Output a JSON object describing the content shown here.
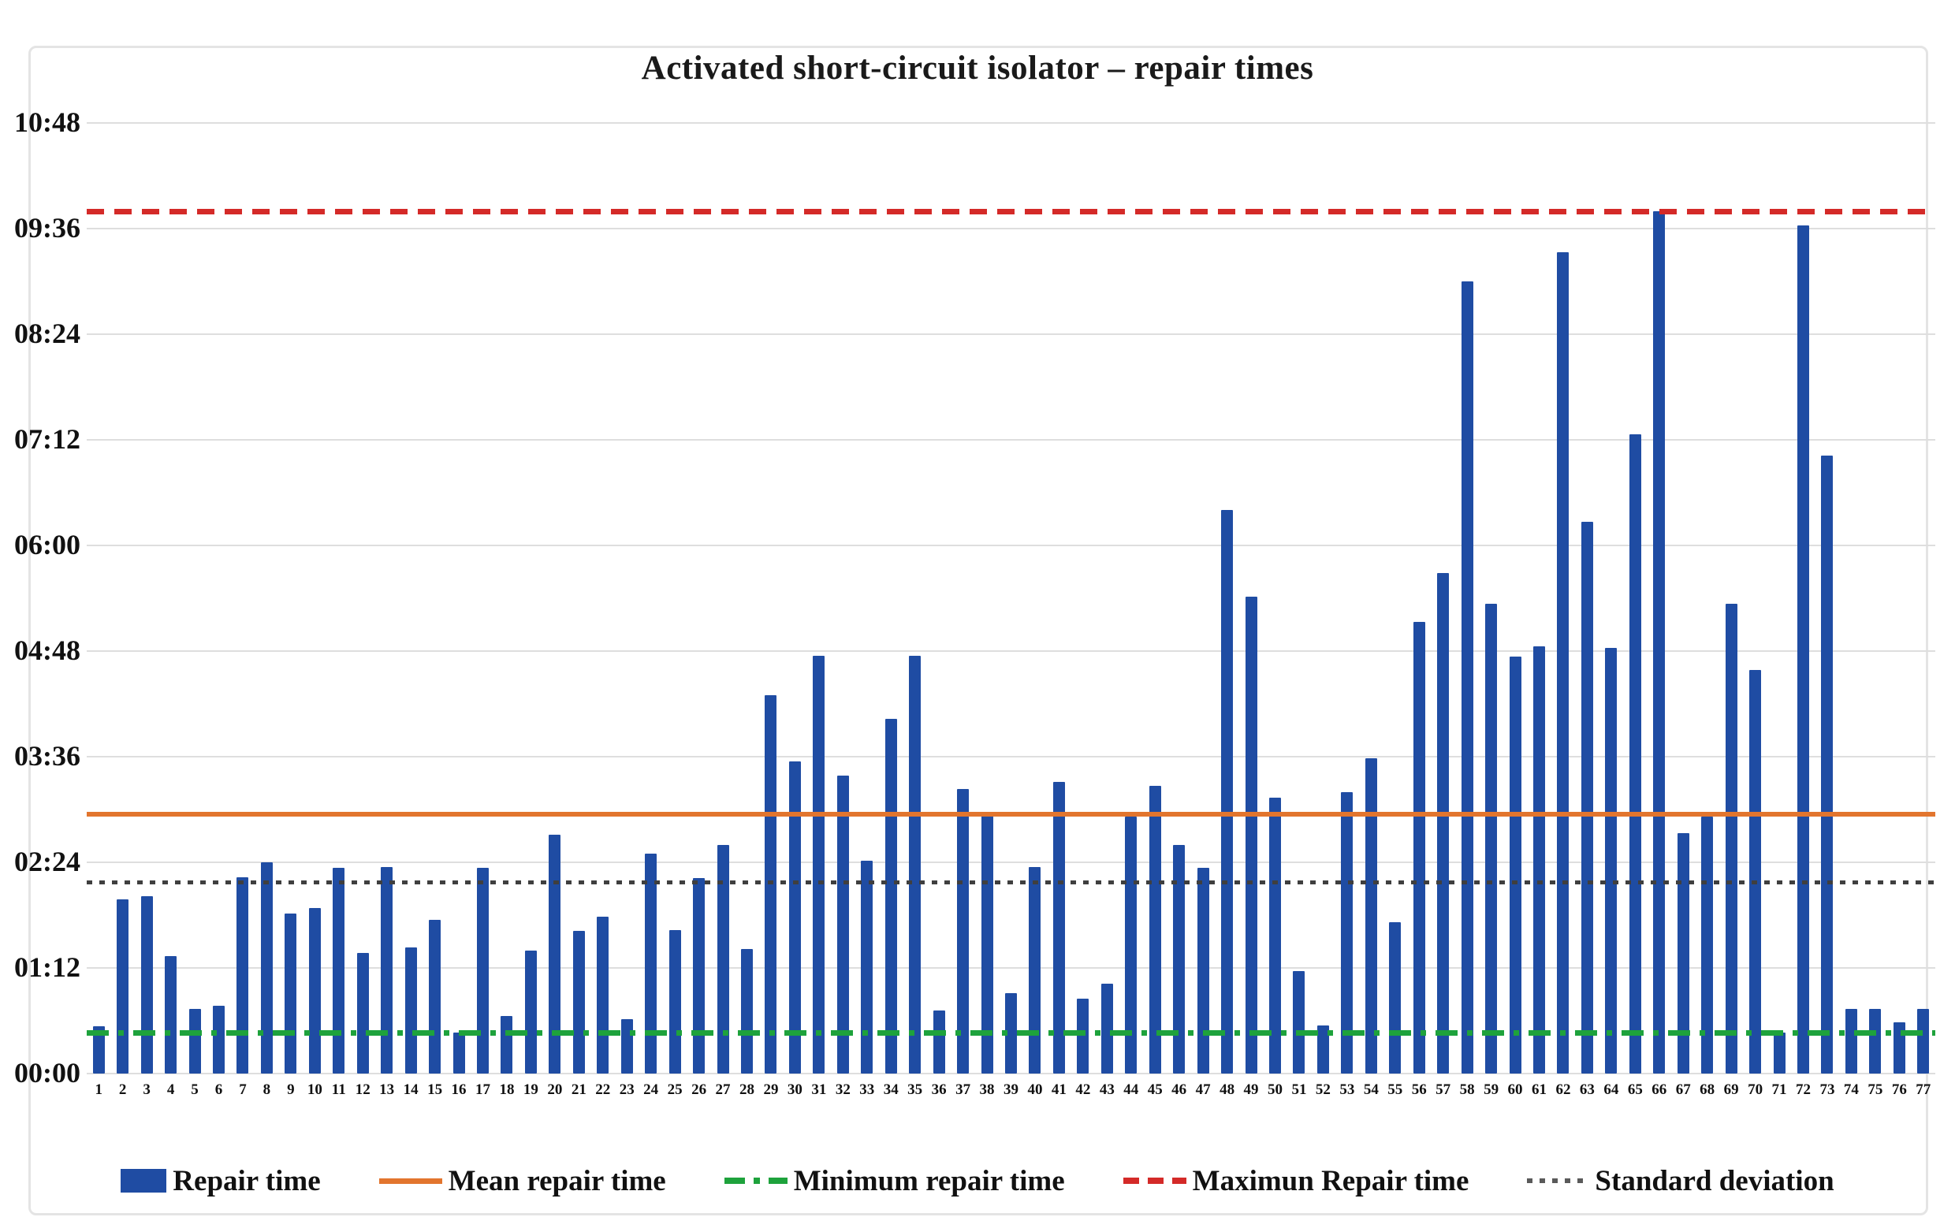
{
  "title": "Activated short-circuit isolator – repair times",
  "chart_data": {
    "type": "bar",
    "title": "Activated short-circuit isolator – repair times",
    "xlabel": "",
    "ylabel": "",
    "grid": "horizontal",
    "legend_position": "bottom",
    "bar_color": "#1f4ca3",
    "y_ticks": [
      "00:00",
      "01:12",
      "02:24",
      "03:36",
      "04:48",
      "06:00",
      "07:12",
      "08:24",
      "09:36",
      "10:48"
    ],
    "ylim_hhmm": [
      "00:00",
      "10:48"
    ],
    "categories": [
      1,
      2,
      3,
      4,
      5,
      6,
      7,
      8,
      9,
      10,
      11,
      12,
      13,
      14,
      15,
      16,
      17,
      18,
      19,
      20,
      21,
      22,
      23,
      24,
      25,
      26,
      27,
      28,
      29,
      30,
      31,
      32,
      33,
      34,
      35,
      36,
      37,
      38,
      39,
      40,
      41,
      42,
      43,
      44,
      45,
      46,
      47,
      48,
      49,
      50,
      51,
      52,
      53,
      54,
      55,
      56,
      57,
      58,
      59,
      60,
      61,
      62,
      63,
      64,
      65,
      66,
      67,
      68,
      69,
      70,
      71,
      72,
      73,
      74,
      75,
      76,
      77
    ],
    "values_hhmm": [
      "0:32",
      "1:59",
      "2:01",
      "1:20",
      "0:44",
      "0:46",
      "2:14",
      "2:24",
      "1:49",
      "1:53",
      "2:20",
      "1:22",
      "2:21",
      "1:26",
      "1:45",
      "0:28",
      "2:20",
      "0:39",
      "1:24",
      "2:43",
      "1:37",
      "1:47",
      "0:37",
      "2:30",
      "1:38",
      "2:13",
      "2:36",
      "1:25",
      "4:18",
      "3:33",
      "4:45",
      "3:23",
      "2:25",
      "4:02",
      "4:45",
      "0:43",
      "3:14",
      "2:57",
      "0:55",
      "2:21",
      "3:19",
      "0:51",
      "1:01",
      "2:55",
      "3:16",
      "2:36",
      "2:20",
      "6:24",
      "5:25",
      "3:08",
      "1:10",
      "0:33",
      "3:12",
      "3:35",
      "1:43",
      "5:08",
      "5:41",
      "9:00",
      "5:20",
      "4:44",
      "4:51",
      "9:20",
      "6:16",
      "4:50",
      "7:16",
      "9:48",
      "2:44",
      "2:55",
      "5:20",
      "4:35",
      "0:28",
      "9:38",
      "7:01",
      "0:44",
      "0:44",
      "0:35",
      "0:44"
    ],
    "reference_lines": [
      {
        "name": "Mean repair time",
        "value_hhmm": "02:57",
        "color": "#e2752e",
        "style": "solid",
        "estimated": true
      },
      {
        "name": "Minimum repair time",
        "value_hhmm": "00:28",
        "color": "#1ea23c",
        "style": "dash-dot",
        "estimated": true
      },
      {
        "name": "Maximun Repair time",
        "value_hhmm": "09:48",
        "color": "#d42a28",
        "style": "dashed",
        "estimated": true
      },
      {
        "name": "Standard deviation",
        "value_hhmm": "02:10",
        "color": "#3f3f3f",
        "style": "dotted",
        "estimated": true
      }
    ],
    "legend": [
      {
        "label": "Repair time",
        "swatch": "bar"
      },
      {
        "label": "Mean repair time",
        "swatch": "solid"
      },
      {
        "label": "Minimum repair time",
        "swatch": "dashdot"
      },
      {
        "label": "Maximun Repair time",
        "swatch": "dashed"
      },
      {
        "label": "Standard deviation",
        "swatch": "dotted"
      }
    ]
  }
}
